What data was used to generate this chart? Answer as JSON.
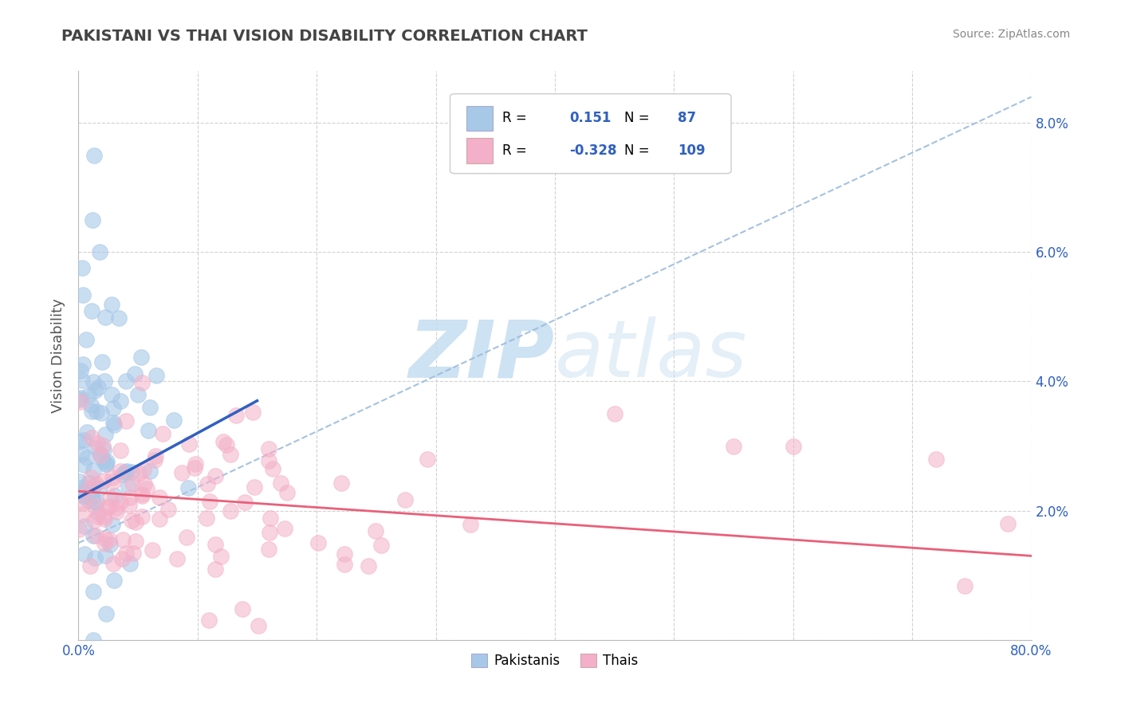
{
  "title": "PAKISTANI VS THAI VISION DISABILITY CORRELATION CHART",
  "source": "Source: ZipAtlas.com",
  "ylabel": "Vision Disability",
  "pakistani_R": 0.151,
  "pakistani_N": 87,
  "thai_R": -0.328,
  "thai_N": 109,
  "blue_scatter_color": "#A8C8E8",
  "pink_scatter_color": "#F4B0C8",
  "blue_line_color": "#3060C0",
  "pink_line_color": "#E8607A",
  "dashed_line_color": "#9BBCDC",
  "legend_border_color": "#CCCCCC",
  "blue_legend_color": "#A8C8E8",
  "pink_legend_color": "#F4B0C8",
  "legend_text_color": "#000000",
  "legend_num_color": "#3060C0",
  "tick_color": "#3060C0",
  "ylabel_color": "#555555",
  "title_color": "#444444",
  "source_color": "#888888",
  "grid_color": "#CCCCCC",
  "background_color": "#FFFFFF",
  "watermark_ZIP_color": "#C5DDF0",
  "watermark_atlas_color": "#C5DDF0",
  "x_min": 0.0,
  "x_max": 0.8,
  "y_min": 0.0,
  "y_max": 0.088,
  "x_ticks": [
    0.0,
    0.1,
    0.2,
    0.3,
    0.4,
    0.5,
    0.6,
    0.7,
    0.8
  ],
  "y_ticks": [
    0.0,
    0.02,
    0.04,
    0.06,
    0.08
  ],
  "y_tick_labels": [
    "",
    "2.0%",
    "4.0%",
    "6.0%",
    "8.0%"
  ],
  "pak_line_x": [
    0.0,
    0.15
  ],
  "pak_line_y": [
    0.022,
    0.037
  ],
  "thai_line_x": [
    0.0,
    0.8
  ],
  "thai_line_y": [
    0.023,
    0.013
  ],
  "dash_line_x": [
    0.0,
    0.8
  ],
  "dash_line_y": [
    0.015,
    0.084
  ]
}
